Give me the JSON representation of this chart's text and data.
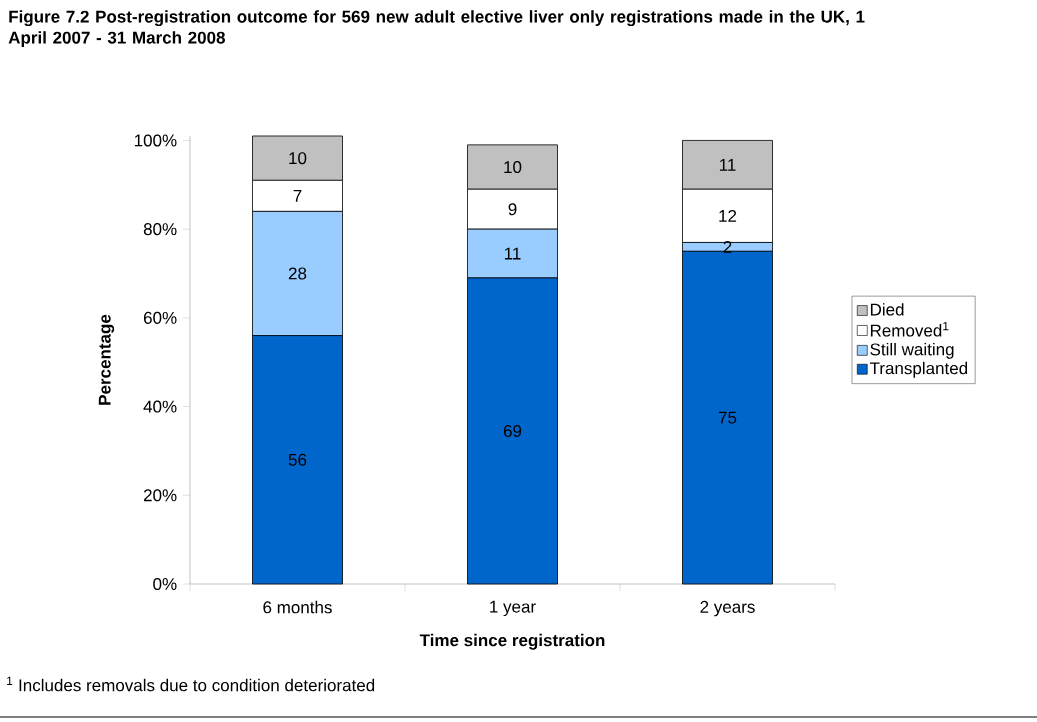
{
  "chart_data": {
    "type": "bar",
    "stacked": true,
    "title": "Figure 7.2      Post-registration outcome for 569 new adult elective liver only registrations made in the UK, 1 April 2007 - 31 March 2008",
    "xlabel": "Time since registration",
    "ylabel": "Percentage",
    "categories": [
      "6 months",
      "1 year",
      "2 years"
    ],
    "series": [
      {
        "name": "Transplanted",
        "color": "#0066cc",
        "values": [
          56,
          69,
          75
        ]
      },
      {
        "name": "Still waiting",
        "color": "#99ccff",
        "values": [
          28,
          11,
          2
        ]
      },
      {
        "name": "Removed$^{1}$",
        "color": "#ffffff",
        "values": [
          7,
          9,
          12
        ]
      },
      {
        "name": "Died",
        "color": "#c0c0c0",
        "values": [
          10,
          10,
          11
        ]
      }
    ],
    "ylim": [
      0,
      101
    ],
    "yticks": [
      {
        "value": 0,
        "label": "0%"
      },
      {
        "value": 20,
        "label": "20%"
      },
      {
        "value": 40,
        "label": "40%"
      },
      {
        "value": 60,
        "label": "60%"
      },
      {
        "value": 80,
        "label": "80%"
      },
      {
        "value": 100,
        "label": "100%"
      }
    ],
    "data_labels": true,
    "legend": "right",
    "grid": false,
    "annotations": [
      "$^{1}$ Includes removals due to condition deteriorated"
    ]
  }
}
